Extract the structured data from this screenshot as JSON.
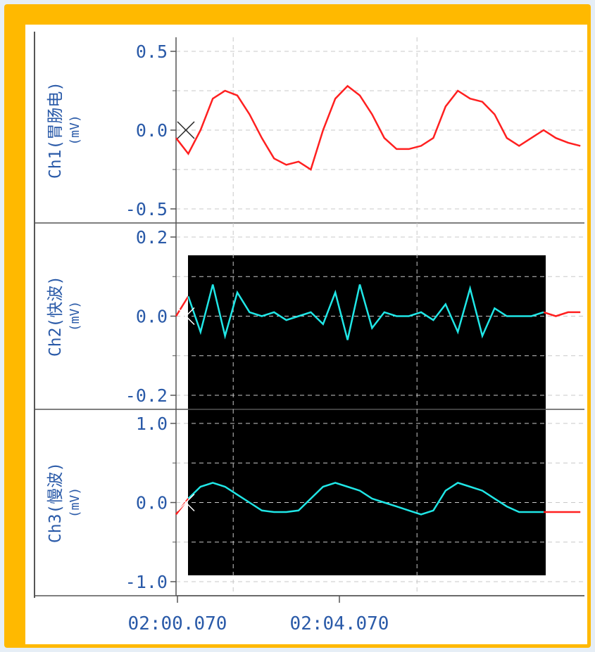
{
  "colors": {
    "frame": "#ffb900",
    "axis_text": "#2a5aa8",
    "raw_trace": "#ff2020",
    "filtered_trace": "#20e6e6",
    "highlight_bg": "#000000",
    "grid": "#c8c8c8"
  },
  "chart_data": [
    {
      "type": "line",
      "ylabel": "Ch1(胃肠电)",
      "yunit": "(mV)",
      "ylim": [
        -0.5,
        0.5
      ],
      "yticks": [
        "0.5",
        "0.0",
        "-0.5"
      ],
      "x": [
        0,
        0.3,
        0.6,
        0.9,
        1.2,
        1.5,
        1.8,
        2.1,
        2.4,
        2.7,
        3.0,
        3.3,
        3.6,
        3.9,
        4.2,
        4.5,
        4.8,
        5.1,
        5.4,
        5.7,
        6.0,
        6.3,
        6.6,
        6.9,
        7.2,
        7.5,
        7.8,
        8.1,
        8.4,
        8.7,
        9.0,
        9.3,
        9.6,
        9.9
      ],
      "series": [
        {
          "values": [
            -0.05,
            -0.15,
            0.0,
            0.2,
            0.25,
            0.22,
            0.1,
            -0.05,
            -0.18,
            -0.22,
            -0.2,
            -0.25,
            0.0,
            0.2,
            0.28,
            0.22,
            0.1,
            -0.05,
            -0.12,
            -0.12,
            -0.1,
            -0.05,
            0.15,
            0.25,
            0.2,
            0.18,
            0.1,
            -0.05,
            -0.1,
            -0.05,
            0.0,
            -0.05,
            -0.08,
            -0.1
          ]
        }
      ]
    },
    {
      "type": "line",
      "ylabel": "Ch2(快波)",
      "yunit": "(mV)",
      "ylim": [
        -0.2,
        0.2
      ],
      "yticks": [
        "0.2",
        "0.0",
        "-0.2"
      ],
      "x": [
        0,
        0.3,
        0.6,
        0.9,
        1.2,
        1.5,
        1.8,
        2.1,
        2.4,
        2.7,
        3.0,
        3.3,
        3.6,
        3.9,
        4.2,
        4.5,
        4.8,
        5.1,
        5.4,
        5.7,
        6.0,
        6.3,
        6.6,
        6.9,
        7.2,
        7.5,
        7.8,
        8.1,
        8.4,
        8.7,
        9.0,
        9.3,
        9.6,
        9.9
      ],
      "series": [
        {
          "values": [
            0.0,
            0.05,
            -0.04,
            0.08,
            -0.05,
            0.06,
            0.01,
            0.0,
            0.01,
            -0.01,
            0.0,
            0.01,
            -0.02,
            0.06,
            -0.06,
            0.08,
            -0.03,
            0.01,
            0.0,
            0.0,
            0.01,
            -0.01,
            0.03,
            -0.04,
            0.07,
            -0.05,
            0.02,
            0.0,
            0.0,
            0.0,
            0.01,
            0.0,
            0.01,
            0.01
          ]
        }
      ]
    },
    {
      "type": "line",
      "ylabel": "Ch3(慢波)",
      "yunit": "(mV)",
      "ylim": [
        -1.0,
        1.0
      ],
      "yticks": [
        "1.0",
        "0.0",
        "-1.0"
      ],
      "xticks": [
        "02:00.070",
        "02:04.070"
      ],
      "x": [
        0,
        0.3,
        0.6,
        0.9,
        1.2,
        1.5,
        1.8,
        2.1,
        2.4,
        2.7,
        3.0,
        3.3,
        3.6,
        3.9,
        4.2,
        4.5,
        4.8,
        5.1,
        5.4,
        5.7,
        6.0,
        6.3,
        6.6,
        6.9,
        7.2,
        7.5,
        7.8,
        8.1,
        8.4,
        8.7,
        9.0,
        9.3,
        9.6,
        9.9
      ],
      "series": [
        {
          "values": [
            -0.15,
            0.05,
            0.2,
            0.25,
            0.2,
            0.1,
            0.0,
            -0.1,
            -0.12,
            -0.12,
            -0.1,
            0.05,
            0.2,
            0.25,
            0.2,
            0.15,
            0.05,
            0.0,
            -0.05,
            -0.1,
            -0.15,
            -0.1,
            0.15,
            0.25,
            0.2,
            0.15,
            0.05,
            -0.05,
            -0.12,
            -0.12,
            -0.12,
            -0.12,
            -0.12,
            -0.12
          ]
        }
      ]
    }
  ]
}
